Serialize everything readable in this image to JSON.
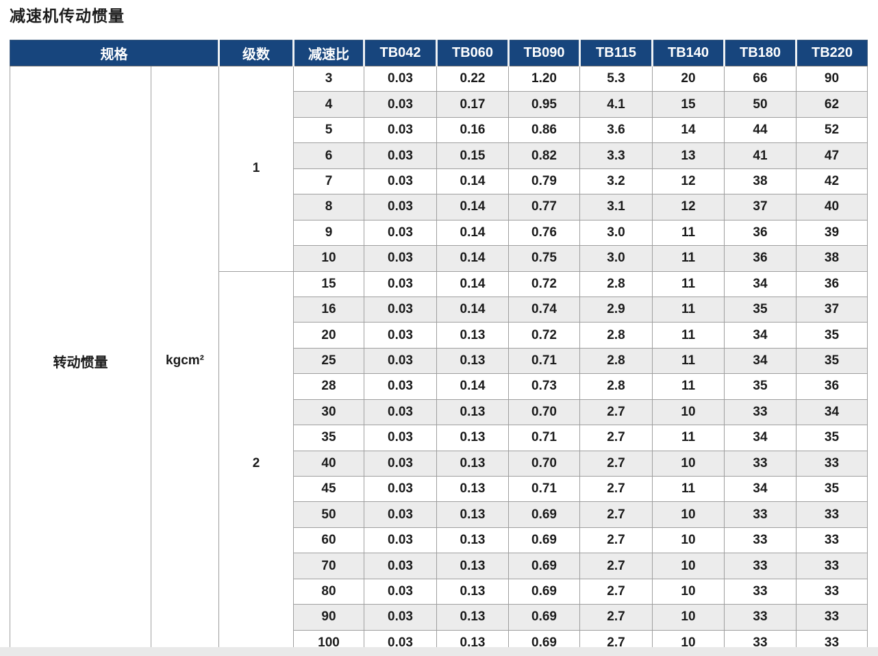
{
  "page_title": "减速机传动惯量",
  "table": {
    "header": {
      "spec": "规格",
      "stages": "级数",
      "ratio": "减速比",
      "models": [
        "TB042",
        "TB060",
        "TB090",
        "TB115",
        "TB140",
        "TB180",
        "TB220"
      ]
    },
    "spec_row_label": "转动惯量",
    "spec_unit": "kgcm²",
    "colors": {
      "header_bg": "#17457d",
      "header_text": "#ffffff",
      "stripe_bg": "#ececec",
      "highlight_bg": "#b5cde9",
      "grid_border": "#9e9e9e"
    },
    "sections": [
      {
        "stage": "1",
        "rows": [
          {
            "ratio": "3",
            "highlight": false,
            "values": [
              "0.03",
              "0.22",
              "1.20",
              "5.3",
              "20",
              "66",
              "90"
            ]
          },
          {
            "ratio": "4",
            "highlight": false,
            "values": [
              "0.03",
              "0.17",
              "0.95",
              "4.1",
              "15",
              "50",
              "62"
            ]
          },
          {
            "ratio": "5",
            "highlight": false,
            "values": [
              "0.03",
              "0.16",
              "0.86",
              "3.6",
              "14",
              "44",
              "52"
            ]
          },
          {
            "ratio": "6",
            "highlight": true,
            "values": [
              "0.03",
              "0.15",
              "0.82",
              "3.3",
              "13",
              "41",
              "47"
            ]
          },
          {
            "ratio": "7",
            "highlight": false,
            "values": [
              "0.03",
              "0.14",
              "0.79",
              "3.2",
              "12",
              "38",
              "42"
            ]
          },
          {
            "ratio": "8",
            "highlight": false,
            "values": [
              "0.03",
              "0.14",
              "0.77",
              "3.1",
              "12",
              "37",
              "40"
            ]
          },
          {
            "ratio": "9",
            "highlight": true,
            "values": [
              "0.03",
              "0.14",
              "0.76",
              "3.0",
              "11",
              "36",
              "39"
            ]
          },
          {
            "ratio": "10",
            "highlight": false,
            "values": [
              "0.03",
              "0.14",
              "0.75",
              "3.0",
              "11",
              "36",
              "38"
            ]
          }
        ]
      },
      {
        "stage": "2",
        "rows": [
          {
            "ratio": "15",
            "highlight": false,
            "values": [
              "0.03",
              "0.14",
              "0.72",
              "2.8",
              "11",
              "34",
              "36"
            ]
          },
          {
            "ratio": "16",
            "highlight": true,
            "values": [
              "0.03",
              "0.14",
              "0.74",
              "2.9",
              "11",
              "35",
              "37"
            ]
          },
          {
            "ratio": "20",
            "highlight": false,
            "values": [
              "0.03",
              "0.13",
              "0.72",
              "2.8",
              "11",
              "34",
              "35"
            ]
          },
          {
            "ratio": "25",
            "highlight": false,
            "values": [
              "0.03",
              "0.13",
              "0.71",
              "2.8",
              "11",
              "34",
              "35"
            ]
          },
          {
            "ratio": "28",
            "highlight": true,
            "values": [
              "0.03",
              "0.14",
              "0.73",
              "2.8",
              "11",
              "35",
              "36"
            ]
          },
          {
            "ratio": "30",
            "highlight": false,
            "values": [
              "0.03",
              "0.13",
              "0.70",
              "2.7",
              "10",
              "33",
              "34"
            ]
          },
          {
            "ratio": "35",
            "highlight": false,
            "values": [
              "0.03",
              "0.13",
              "0.71",
              "2.7",
              "11",
              "34",
              "35"
            ]
          },
          {
            "ratio": "40",
            "highlight": false,
            "values": [
              "0.03",
              "0.13",
              "0.70",
              "2.7",
              "10",
              "33",
              "33"
            ]
          },
          {
            "ratio": "45",
            "highlight": true,
            "values": [
              "0.03",
              "0.13",
              "0.71",
              "2.7",
              "11",
              "34",
              "35"
            ]
          },
          {
            "ratio": "50",
            "highlight": false,
            "values": [
              "0.03",
              "0.13",
              "0.69",
              "2.7",
              "10",
              "33",
              "33"
            ]
          },
          {
            "ratio": "60",
            "highlight": true,
            "values": [
              "0.03",
              "0.13",
              "0.69",
              "2.7",
              "10",
              "33",
              "33"
            ]
          },
          {
            "ratio": "70",
            "highlight": false,
            "values": [
              "0.03",
              "0.13",
              "0.69",
              "2.7",
              "10",
              "33",
              "33"
            ]
          },
          {
            "ratio": "80",
            "highlight": false,
            "values": [
              "0.03",
              "0.13",
              "0.69",
              "2.7",
              "10",
              "33",
              "33"
            ]
          },
          {
            "ratio": "90",
            "highlight": true,
            "values": [
              "0.03",
              "0.13",
              "0.69",
              "2.7",
              "10",
              "33",
              "33"
            ]
          },
          {
            "ratio": "100",
            "highlight": false,
            "values": [
              "0.03",
              "0.13",
              "0.69",
              "2.7",
              "10",
              "33",
              "33"
            ]
          }
        ]
      }
    ]
  }
}
